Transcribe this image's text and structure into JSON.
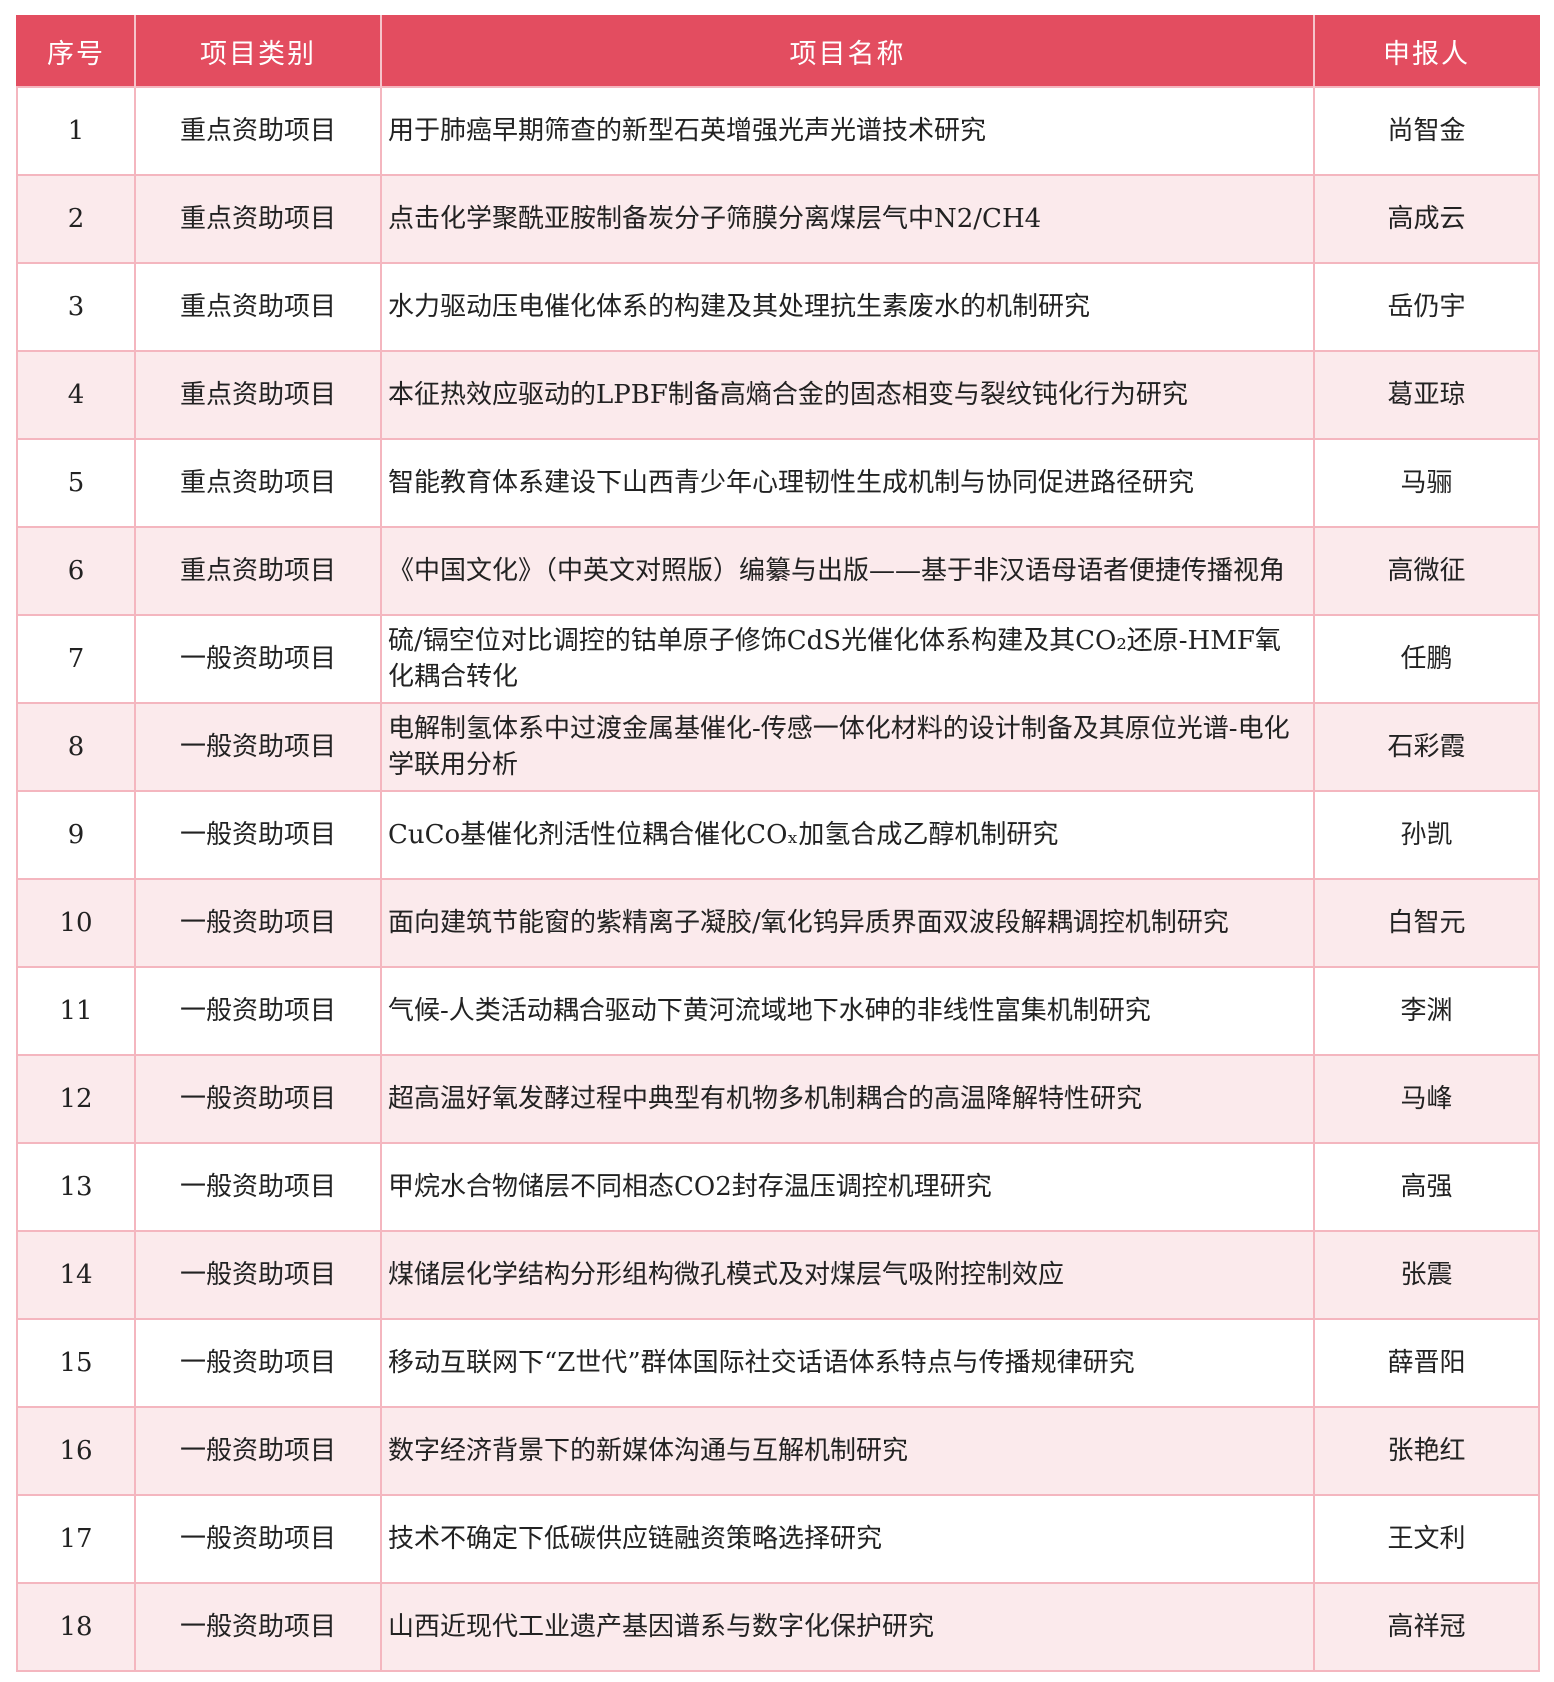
{
  "colors": {
    "header": "#e34d60",
    "border": "#f4b6bf",
    "alt_row": "#fbeaec"
  },
  "headers": [
    "序号",
    "项目类别",
    "项目名称",
    "申报人"
  ],
  "rows": [
    {
      "no": "1",
      "category": "重点资助项目",
      "name": "用于肺癌早期筛查的新型石英增强光声光谱技术研究",
      "applicant": "尚智金"
    },
    {
      "no": "2",
      "category": "重点资助项目",
      "name": "点击化学聚酰亚胺制备炭分子筛膜分离煤层气中N2/CH4",
      "applicant": "高成云"
    },
    {
      "no": "3",
      "category": "重点资助项目",
      "name": "水力驱动压电催化体系的构建及其处理抗生素废水的机制研究",
      "applicant": "岳仍宇"
    },
    {
      "no": "4",
      "category": "重点资助项目",
      "name": "本征热效应驱动的LPBF制备高熵合金的固态相变与裂纹钝化行为研究",
      "applicant": "葛亚琼"
    },
    {
      "no": "5",
      "category": "重点资助项目",
      "name": "智能教育体系建设下山西青少年心理韧性生成机制与协同促进路径研究",
      "applicant": "马骊"
    },
    {
      "no": "6",
      "category": "重点资助项目",
      "name": "《中国文化》（中英文对照版）编纂与出版——基于非汉语母语者便捷传播视角",
      "applicant": "高微征"
    },
    {
      "no": "7",
      "category": "一般资助项目",
      "name": "硫/镉空位对比调控的钴单原子修饰CdS光催化体系构建及其CO₂还原-HMF氧化耦合转化",
      "applicant": "任鹏"
    },
    {
      "no": "8",
      "category": "一般资助项目",
      "name": "电解制氢体系中过渡金属基催化-传感一体化材料的设计制备及其原位光谱-电化学联用分析",
      "applicant": "石彩霞"
    },
    {
      "no": "9",
      "category": "一般资助项目",
      "name": "CuCo基催化剂活性位耦合催化COₓ加氢合成乙醇机制研究",
      "applicant": "孙凯"
    },
    {
      "no": "10",
      "category": "一般资助项目",
      "name": "面向建筑节能窗的紫精离子凝胶/氧化钨异质界面双波段解耦调控机制研究",
      "applicant": "白智元"
    },
    {
      "no": "11",
      "category": "一般资助项目",
      "name": "气候-人类活动耦合驱动下黄河流域地下水砷的非线性富集机制研究",
      "applicant": "李渊"
    },
    {
      "no": "12",
      "category": "一般资助项目",
      "name": "超高温好氧发酵过程中典型有机物多机制耦合的高温降解特性研究",
      "applicant": "马峰"
    },
    {
      "no": "13",
      "category": "一般资助项目",
      "name": "甲烷水合物储层不同相态CO2封存温压调控机理研究",
      "applicant": "高强"
    },
    {
      "no": "14",
      "category": "一般资助项目",
      "name": "煤储层化学结构分形组构微孔模式及对煤层气吸附控制效应",
      "applicant": "张震"
    },
    {
      "no": "15",
      "category": "一般资助项目",
      "name": "移动互联网下“Z世代”群体国际社交话语体系特点与传播规律研究",
      "applicant": "薛晋阳"
    },
    {
      "no": "16",
      "category": "一般资助项目",
      "name": "数字经济背景下的新媒体沟通与互解机制研究",
      "applicant": "张艳红"
    },
    {
      "no": "17",
      "category": "一般资助项目",
      "name": "技术不确定下低碳供应链融资策略选择研究",
      "applicant": "王文利"
    },
    {
      "no": "18",
      "category": "一般资助项目",
      "name": "山西近现代工业遗产基因谱系与数字化保护研究",
      "applicant": "高祥冠"
    }
  ]
}
